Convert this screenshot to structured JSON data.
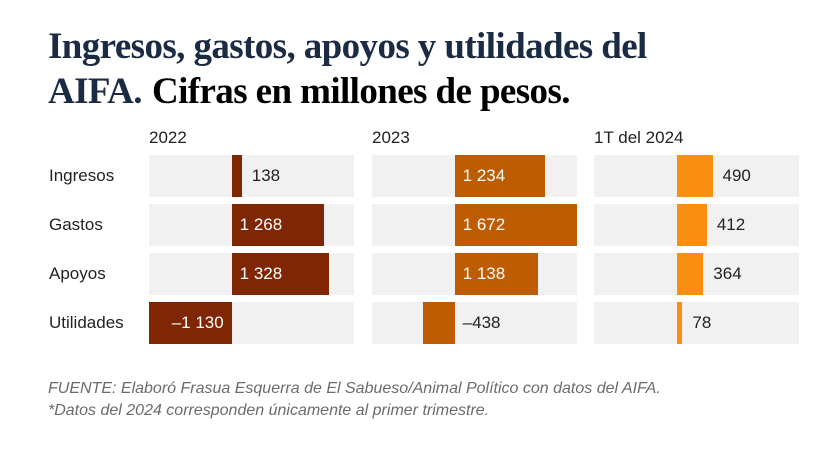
{
  "title": "Ingresos, gastos, apoyos y utilidades del AIFA.",
  "subtitle": "Cifras en millones de pesos.",
  "chart_data": {
    "type": "bar",
    "orientation": "horizontal",
    "layout": "small-multiples",
    "categories": [
      "Ingresos",
      "Gastos",
      "Apoyos",
      "Utilidades"
    ],
    "xlim": [
      -1130,
      1672
    ],
    "grid": false,
    "series": [
      {
        "name": "2022",
        "color": "#7f2704",
        "values": [
          138,
          1268,
          1328,
          -1130
        ],
        "labels": [
          "138",
          "1 268",
          "1 328",
          "–1 130"
        ]
      },
      {
        "name": "2023",
        "color": "#bd5c02",
        "values": [
          1234,
          1672,
          1138,
          -438
        ],
        "labels": [
          "1 234",
          "1 672",
          "1 138",
          "–438"
        ]
      },
      {
        "name": "1T del 2024",
        "color": "#f98e10",
        "values": [
          490,
          412,
          364,
          78
        ],
        "labels": [
          "490",
          "412",
          "364",
          "78"
        ]
      }
    ]
  },
  "footer": {
    "source": "FUENTE: Elaboró Frasua Esquerra de El Sabueso/Animal Político con datos del AIFA.",
    "note": "*Datos del 2024 corresponden únicamente al primer trimestre."
  }
}
